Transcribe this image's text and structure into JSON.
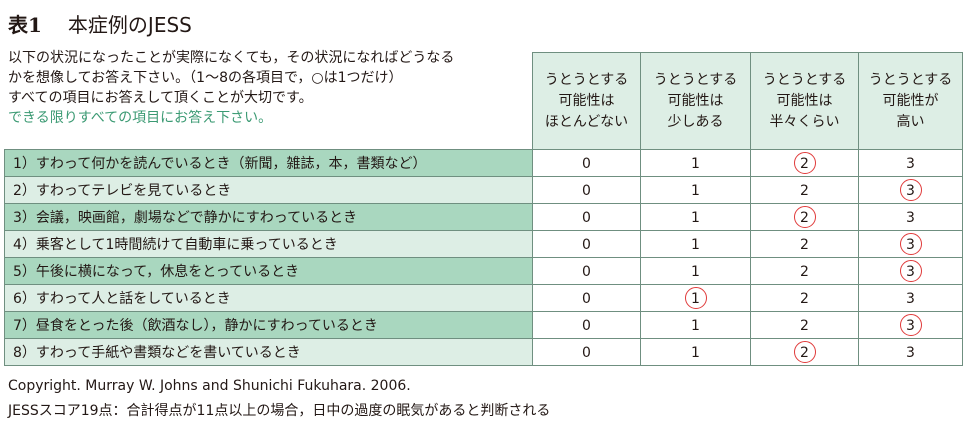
{
  "title": {
    "number": "表1",
    "text": "本症例のJESS"
  },
  "instructions": [
    "以下の状況になったことが実際になくても，その状況になればどうなる",
    "かを想像してお答え下さい。（1～8の各項目で，○は1つだけ）",
    "すべての項目にお答えして頂くことが大切です。"
  ],
  "instruction_emphasis": "できる限りすべての項目にお答え下さい。",
  "columns": [
    [
      "うとうとする",
      "可能性は",
      "ほとんどない"
    ],
    [
      "うとうとする",
      "可能性は",
      "少しある"
    ],
    [
      "うとうとする",
      "可能性は",
      "半々くらい"
    ],
    [
      "うとうとする",
      "可能性が",
      "高い"
    ]
  ],
  "rows": [
    {
      "label": "1）すわって何かを読んでいるとき（新聞，雑誌，本，書類など）",
      "scores": [
        "0",
        "1",
        "2",
        "3"
      ],
      "circled": 2
    },
    {
      "label": "2）すわってテレビを見ているとき",
      "scores": [
        "0",
        "1",
        "2",
        "3"
      ],
      "circled": 3
    },
    {
      "label": "3）会議，映画館，劇場などで静かにすわっているとき",
      "scores": [
        "0",
        "1",
        "2",
        "3"
      ],
      "circled": 2
    },
    {
      "label": "4）乗客として1時間続けて自動車に乗っているとき",
      "scores": [
        "0",
        "1",
        "2",
        "3"
      ],
      "circled": 3
    },
    {
      "label": "5）午後に横になって，休息をとっているとき",
      "scores": [
        "0",
        "1",
        "2",
        "3"
      ],
      "circled": 3
    },
    {
      "label": "6）すわって人と話をしているとき",
      "scores": [
        "0",
        "1",
        "2",
        "3"
      ],
      "circled": 1
    },
    {
      "label": "7）昼食をとった後（飲酒なし），静かにすわっているとき",
      "scores": [
        "0",
        "1",
        "2",
        "3"
      ],
      "circled": 3
    },
    {
      "label": "8）すわって手紙や書類などを書いているとき",
      "scores": [
        "0",
        "1",
        "2",
        "3"
      ],
      "circled": 2
    }
  ],
  "footer": {
    "copyright": "Copyright. Murray W. Johns and Shunichi Fukuhara. 2006.",
    "score_note": "JESSスコア19点：合計得点が11点以上の場合，日中の過度の眠気があると判断される"
  },
  "colors": {
    "header_bg": "#ddeee5",
    "row_dark": "#a9d7bf",
    "row_light": "#ddeee5",
    "emphasis_text": "#3b9a73",
    "circle": "#e03a3a"
  }
}
